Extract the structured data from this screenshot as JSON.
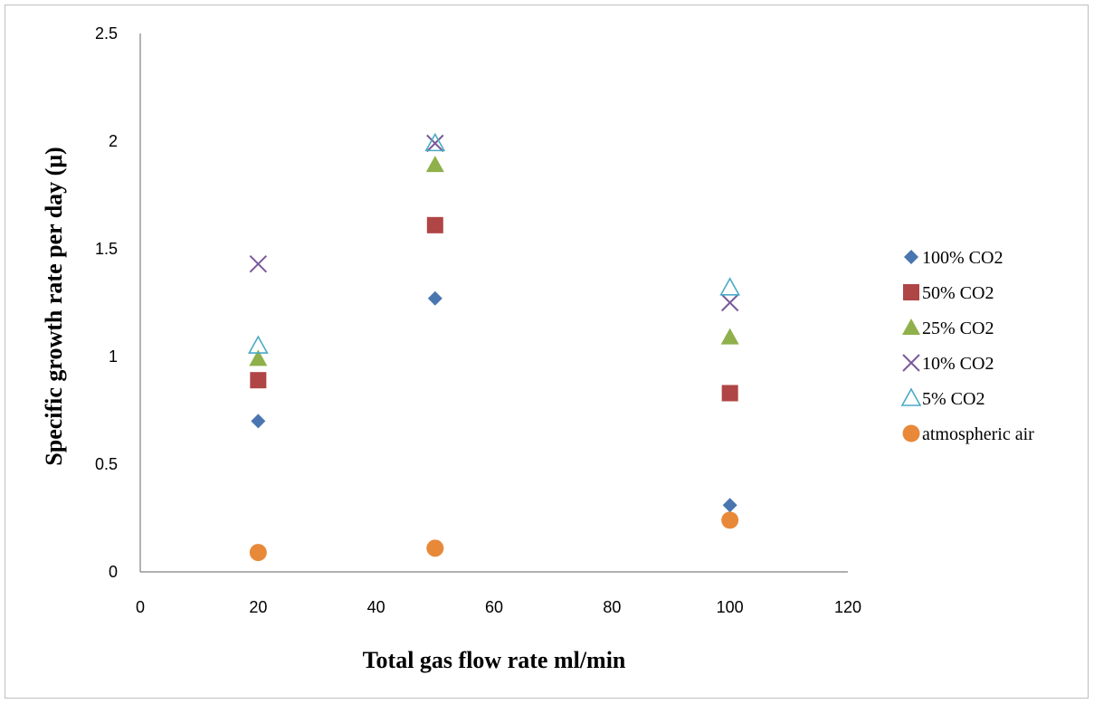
{
  "chart_data": {
    "type": "scatter",
    "title": "",
    "xlabel": "Total gas flow rate ml/min",
    "ylabel": "Specific growth rate per day (μ)",
    "xlim": [
      0,
      120
    ],
    "ylim": [
      0,
      2.5
    ],
    "xticks": [
      0,
      20,
      40,
      60,
      80,
      100,
      120
    ],
    "yticks": [
      0,
      0.5,
      1,
      1.5,
      2,
      2.5
    ],
    "xtick_labels": [
      "0",
      "20",
      "40",
      "60",
      "80",
      "100",
      "120"
    ],
    "ytick_labels": [
      "0",
      "0.5",
      "1",
      "1.5",
      "2",
      "2.5"
    ],
    "grid": false,
    "legend_position": "right",
    "series": [
      {
        "name": "100% CO2",
        "marker": "diamond",
        "color": "#4a76b0",
        "x": [
          20,
          50,
          100
        ],
        "y": [
          0.7,
          1.27,
          0.31
        ]
      },
      {
        "name": "50% CO2",
        "marker": "square",
        "color": "#b04545",
        "x": [
          20,
          50,
          100
        ],
        "y": [
          0.89,
          1.61,
          0.83
        ]
      },
      {
        "name": "25% CO2",
        "marker": "triangle",
        "color": "#8fb04a",
        "x": [
          20,
          50,
          100
        ],
        "y": [
          0.99,
          1.89,
          1.09
        ]
      },
      {
        "name": "10% CO2",
        "marker": "x",
        "color": "#7a5a9a",
        "x": [
          20,
          50,
          100
        ],
        "y": [
          1.43,
          1.99,
          1.25
        ]
      },
      {
        "name": "5% CO2",
        "marker": "triangle-open",
        "color": "#4aaac6",
        "x": [
          20,
          50,
          100
        ],
        "y": [
          1.05,
          1.99,
          1.32
        ]
      },
      {
        "name": "atmospheric air",
        "marker": "circle",
        "color": "#e8893a",
        "x": [
          20,
          50,
          100
        ],
        "y": [
          0.09,
          0.11,
          0.24
        ]
      }
    ]
  }
}
